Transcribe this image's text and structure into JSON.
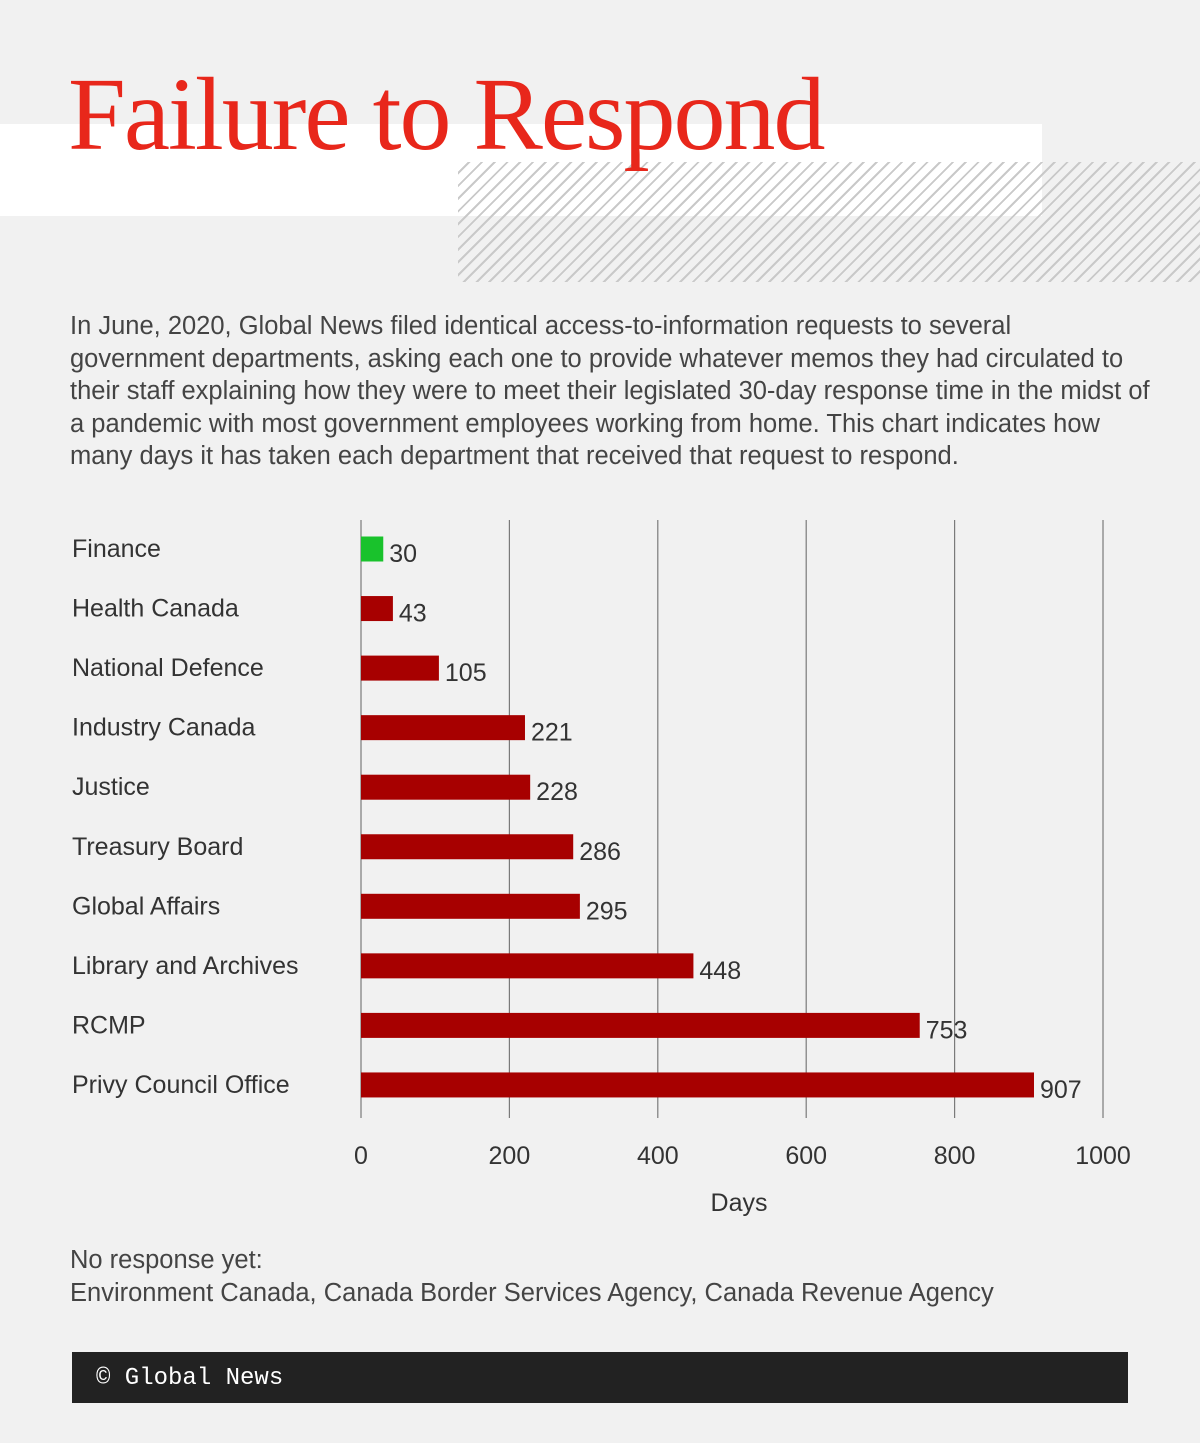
{
  "title": "Failure to Respond",
  "intro": "In June, 2020, Global News filed identical access-to-information requests to several government departments, asking each one to provide whatever memos they had circulated to their staff explaining how they were to meet their legislated 30-day response time in the midst of a pandemic with most government employees working from home. This chart indicates how many days it has taken each department that received that request to respond.",
  "chart_data": {
    "type": "bar",
    "orientation": "horizontal",
    "categories": [
      "Finance",
      "Health Canada",
      "National Defence",
      "Industry Canada",
      "Justice",
      "Treasury Board",
      "Global Affairs",
      "Library and Archives",
      "RCMP",
      "Privy Council Office"
    ],
    "values": [
      30,
      43,
      105,
      221,
      228,
      286,
      295,
      448,
      753,
      907
    ],
    "bar_colors": [
      "#19c22c",
      "#a70000",
      "#a70000",
      "#a70000",
      "#a70000",
      "#a70000",
      "#a70000",
      "#a70000",
      "#a70000",
      "#a70000"
    ],
    "xlabel": "Days",
    "ylabel": "",
    "xlim": [
      0,
      1000
    ],
    "xticks": [
      0,
      200,
      400,
      600,
      800,
      1000
    ],
    "grid": true
  },
  "no_response": {
    "heading": "No response yet:",
    "list": "Environment Canada, Canada Border Services Agency, Canada Revenue Agency"
  },
  "footer": {
    "text": "© Global News"
  }
}
